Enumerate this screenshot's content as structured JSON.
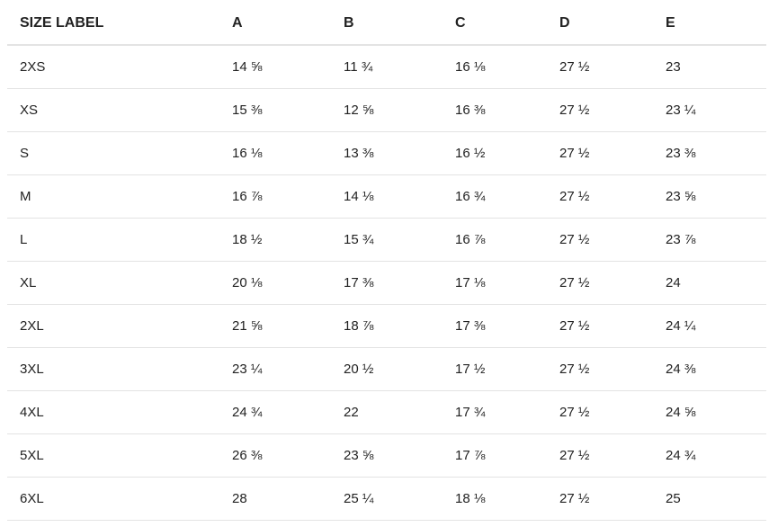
{
  "table": {
    "header": [
      "SIZE LABEL",
      "A",
      "B",
      "C",
      "D",
      "E"
    ],
    "rows": [
      [
        "2XS",
        "14 ⅝",
        "11 ¾",
        "16 ⅛",
        "27 ½",
        "23"
      ],
      [
        "XS",
        "15 ⅜",
        "12 ⅝",
        "16 ⅜",
        "27 ½",
        "23 ¼"
      ],
      [
        "S",
        "16 ⅛",
        "13 ⅜",
        "16 ½",
        "27 ½",
        "23 ⅜"
      ],
      [
        "M",
        "16 ⅞",
        "14 ⅛",
        "16 ¾",
        "27 ½",
        "23 ⅝"
      ],
      [
        "L",
        "18 ½",
        "15 ¾",
        "16 ⅞",
        "27 ½",
        "23 ⅞"
      ],
      [
        "XL",
        "20 ⅛",
        "17 ⅜",
        "17 ⅛",
        "27 ½",
        "24"
      ],
      [
        "2XL",
        "21 ⅝",
        "18 ⅞",
        "17 ⅜",
        "27 ½",
        "24 ¼"
      ],
      [
        "3XL",
        "23 ¼",
        "20 ½",
        "17 ½",
        "27 ½",
        "24 ⅜"
      ],
      [
        "4XL",
        "24 ¾",
        "22",
        "17 ¾",
        "27 ½",
        "24 ⅝"
      ],
      [
        "5XL",
        "26 ⅜",
        "23 ⅝",
        "17 ⅞",
        "27 ½",
        "24 ¾"
      ],
      [
        "6XL",
        "28",
        "25 ¼",
        "18 ⅛",
        "27 ½",
        "25"
      ]
    ]
  }
}
